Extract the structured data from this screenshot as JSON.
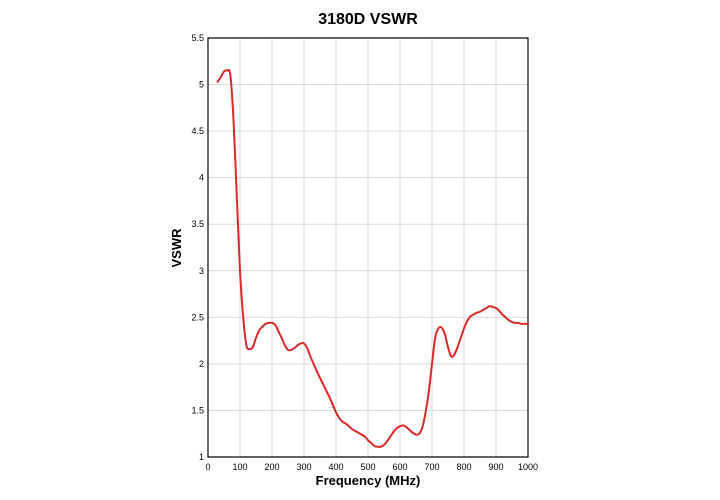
{
  "chart_data": {
    "type": "line",
    "title": "3180D VSWR",
    "xlabel": "Frequency  (MHz)",
    "ylabel": "VSWR",
    "xlim": [
      0,
      1000
    ],
    "ylim": [
      1,
      5.5
    ],
    "x_ticks": [
      "0",
      "100",
      "200",
      "300",
      "400",
      "500",
      "600",
      "700",
      "800",
      "900",
      "1000"
    ],
    "y_ticks": [
      "1",
      "1.5",
      "2",
      "2.5",
      "3",
      "3.5",
      "4",
      "4.5",
      "5",
      "5.5"
    ],
    "grid": true,
    "color": "#d92a2a",
    "series": [
      {
        "x": [
          30,
          40,
          50,
          60,
          70,
          80,
          90,
          100,
          110,
          120,
          130,
          140,
          150,
          160,
          170,
          180,
          190,
          200,
          210,
          220,
          230,
          240,
          250,
          260,
          270,
          280,
          290,
          300,
          310,
          320,
          330,
          340,
          350,
          360,
          370,
          380,
          390,
          400,
          410,
          420,
          430,
          440,
          450,
          460,
          470,
          480,
          490,
          500,
          510,
          520,
          530,
          540,
          550,
          560,
          570,
          580,
          590,
          600,
          610,
          620,
          630,
          640,
          650,
          660,
          670,
          680,
          690,
          700,
          710,
          720,
          730,
          740,
          750,
          760,
          770,
          780,
          790,
          800,
          810,
          820,
          830,
          840,
          850,
          860,
          870,
          880,
          890,
          900,
          910,
          920,
          930,
          940,
          950,
          960,
          970,
          980,
          990,
          1000
        ],
        "values": [
          5.03,
          5.08,
          5.14,
          5.15,
          5.1,
          4.6,
          3.8,
          3.0,
          2.5,
          2.2,
          2.16,
          2.18,
          2.28,
          2.36,
          2.4,
          2.43,
          2.44,
          2.44,
          2.42,
          2.35,
          2.28,
          2.2,
          2.15,
          2.15,
          2.17,
          2.2,
          2.22,
          2.22,
          2.17,
          2.08,
          2.0,
          1.92,
          1.85,
          1.78,
          1.71,
          1.64,
          1.56,
          1.48,
          1.42,
          1.38,
          1.36,
          1.33,
          1.3,
          1.28,
          1.26,
          1.24,
          1.22,
          1.18,
          1.15,
          1.12,
          1.11,
          1.11,
          1.13,
          1.17,
          1.22,
          1.27,
          1.31,
          1.33,
          1.34,
          1.32,
          1.29,
          1.26,
          1.24,
          1.25,
          1.32,
          1.48,
          1.7,
          2.0,
          2.28,
          2.38,
          2.39,
          2.32,
          2.18,
          2.08,
          2.1,
          2.18,
          2.28,
          2.38,
          2.46,
          2.51,
          2.53,
          2.55,
          2.56,
          2.58,
          2.6,
          2.62,
          2.61,
          2.6,
          2.57,
          2.53,
          2.5,
          2.47,
          2.45,
          2.44,
          2.44,
          2.43,
          2.43,
          2.43
        ]
      }
    ]
  }
}
